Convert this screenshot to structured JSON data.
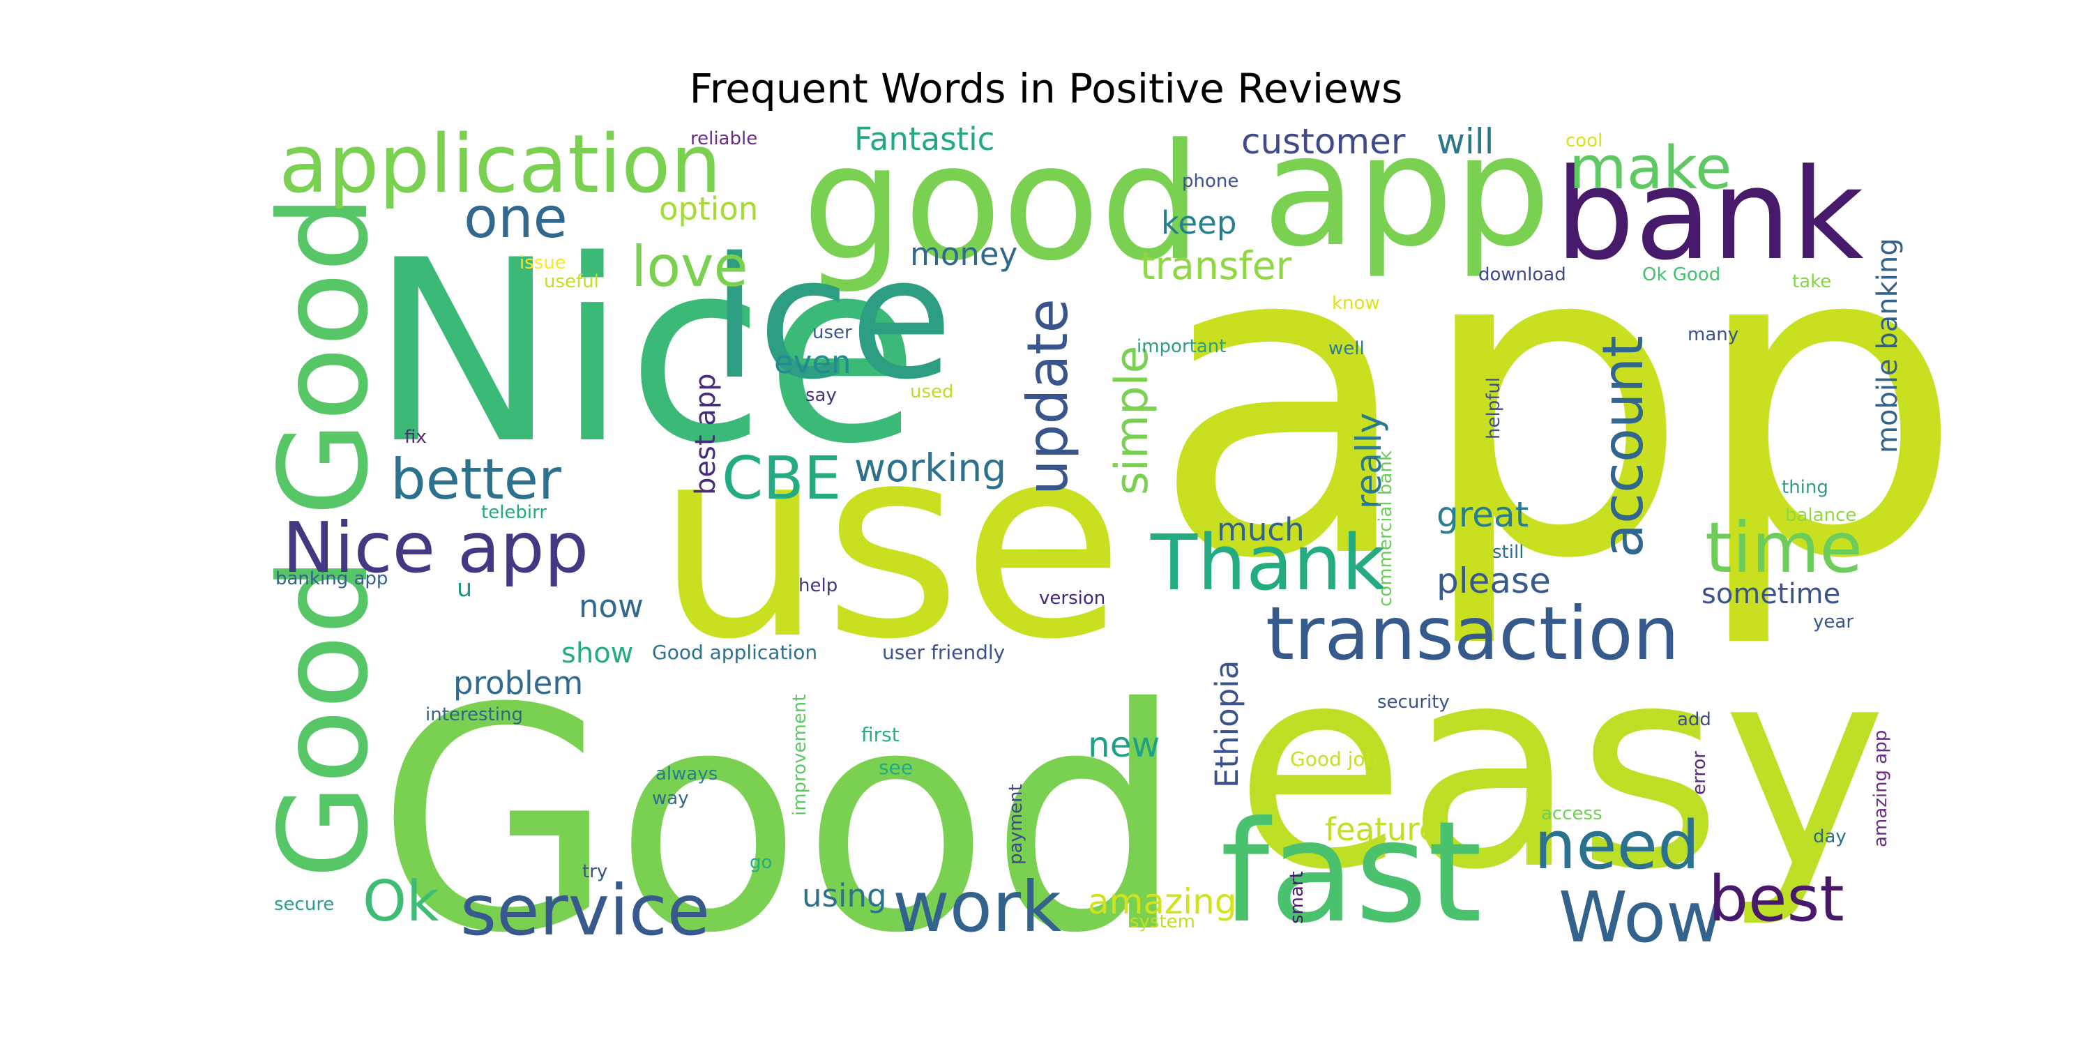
{
  "title": "Frequent Words in Positive Reviews",
  "words": [
    {
      "text": "app",
      "color": "#c8e020"
    },
    {
      "text": "Nice",
      "color": "#3ab977"
    },
    {
      "text": "Good",
      "color": "#7ad151"
    },
    {
      "text": "use",
      "color": "#c8e020"
    },
    {
      "text": "easy",
      "color": "#bddf26"
    },
    {
      "text": "good",
      "color": "#7ad151"
    },
    {
      "text": "app",
      "color": "#7ad151"
    },
    {
      "text": "bank",
      "color": "#481a6c"
    },
    {
      "text": "Good",
      "color": "#56c667"
    },
    {
      "text": "Good",
      "color": "#56c667"
    },
    {
      "text": "ice",
      "color": "#2e9e82"
    },
    {
      "text": "application",
      "color": "#7ad151"
    },
    {
      "text": "fast",
      "color": "#4ac16d"
    },
    {
      "text": "transaction",
      "color": "#375a8c"
    },
    {
      "text": "Nice app",
      "color": "#453781"
    },
    {
      "text": "Thank",
      "color": "#25ab82"
    },
    {
      "text": "time",
      "color": "#6ccd5a"
    },
    {
      "text": "account",
      "color": "#31678e"
    },
    {
      "text": "service",
      "color": "#38598c"
    },
    {
      "text": "work",
      "color": "#33628d"
    },
    {
      "text": "need",
      "color": "#2c728e"
    },
    {
      "text": "Wow",
      "color": "#33638d"
    },
    {
      "text": "best",
      "color": "#48186a"
    },
    {
      "text": "better",
      "color": "#2c728e"
    },
    {
      "text": "CBE",
      "color": "#25ab82"
    },
    {
      "text": "update",
      "color": "#39568c"
    },
    {
      "text": "make",
      "color": "#5ec962"
    },
    {
      "text": "love",
      "color": "#7ad151"
    },
    {
      "text": "one",
      "color": "#31688e"
    },
    {
      "text": "simple",
      "color": "#7ad151"
    },
    {
      "text": "Ok",
      "color": "#3fbc73"
    },
    {
      "text": "working",
      "color": "#2c728e"
    },
    {
      "text": "transfer",
      "color": "#8fd744"
    },
    {
      "text": "customer",
      "color": "#3e4a89"
    },
    {
      "text": "Fantastic",
      "color": "#22a884"
    },
    {
      "text": "will",
      "color": "#2a788e"
    },
    {
      "text": "keep",
      "color": "#277f8e"
    },
    {
      "text": "option",
      "color": "#a5db36"
    },
    {
      "text": "money",
      "color": "#31688e"
    },
    {
      "text": "even",
      "color": "#238a8d"
    },
    {
      "text": "best app",
      "color": "#472c7a"
    },
    {
      "text": "really",
      "color": "#2a788e"
    },
    {
      "text": "great",
      "color": "#287d8e"
    },
    {
      "text": "please",
      "color": "#38598c"
    },
    {
      "text": "much",
      "color": "#33638d"
    },
    {
      "text": "sometime",
      "color": "#3b528b"
    },
    {
      "text": "Ethiopia",
      "color": "#3b528b"
    },
    {
      "text": "new",
      "color": "#1fa088"
    },
    {
      "text": "feature",
      "color": "#c2df23"
    },
    {
      "text": "amazing",
      "color": "#d2e21b"
    },
    {
      "text": "using",
      "color": "#2d718e"
    },
    {
      "text": "problem",
      "color": "#306a8e"
    },
    {
      "text": "now",
      "color": "#31688e"
    },
    {
      "text": "show",
      "color": "#25ab82"
    },
    {
      "text": "mobile banking",
      "color": "#33638d"
    },
    {
      "text": "u",
      "color": "#1f958b"
    },
    {
      "text": "reliable",
      "color": "#6a2c83"
    },
    {
      "text": "cool",
      "color": "#d8e219"
    },
    {
      "text": "phone",
      "color": "#3b528b"
    },
    {
      "text": "issue",
      "color": "#fde725"
    },
    {
      "text": "useful",
      "color": "#c0df25"
    },
    {
      "text": "download",
      "color": "#3e4a89"
    },
    {
      "text": "Ok Good",
      "color": "#46c06f"
    },
    {
      "text": "take",
      "color": "#86d549"
    },
    {
      "text": "know",
      "color": "#dde318"
    },
    {
      "text": "user",
      "color": "#38598c"
    },
    {
      "text": "important",
      "color": "#2c9d84"
    },
    {
      "text": "well",
      "color": "#2e7d8e"
    },
    {
      "text": "many",
      "color": "#3b528b"
    },
    {
      "text": "say",
      "color": "#46337e"
    },
    {
      "text": "used",
      "color": "#b8de29"
    },
    {
      "text": "fix",
      "color": "#5a2878"
    },
    {
      "text": "helpful",
      "color": "#3d4e8a"
    },
    {
      "text": "commercial bank",
      "color": "#6ccd5a"
    },
    {
      "text": "thing",
      "color": "#2c9d84"
    },
    {
      "text": "telebirr",
      "color": "#22a884"
    },
    {
      "text": "balance",
      "color": "#8fd744"
    },
    {
      "text": "still",
      "color": "#2d708e"
    },
    {
      "text": "banking app",
      "color": "#33638d"
    },
    {
      "text": "help",
      "color": "#46337e"
    },
    {
      "text": "version",
      "color": "#482677"
    },
    {
      "text": "year",
      "color": "#39568c"
    },
    {
      "text": "Good application",
      "color": "#2c728e"
    },
    {
      "text": "user friendly",
      "color": "#3b528b"
    },
    {
      "text": "interesting",
      "color": "#33638d"
    },
    {
      "text": "security",
      "color": "#3b528b"
    },
    {
      "text": "add",
      "color": "#3e4a89"
    },
    {
      "text": "amazing app",
      "color": "#6a2c83"
    },
    {
      "text": "first",
      "color": "#28ae80"
    },
    {
      "text": "see",
      "color": "#25ab82"
    },
    {
      "text": "improvement",
      "color": "#5ec962"
    },
    {
      "text": "always",
      "color": "#277f8e"
    },
    {
      "text": "way",
      "color": "#31688e"
    },
    {
      "text": "payment",
      "color": "#3e4a89"
    },
    {
      "text": "Good job",
      "color": "#c8e020"
    },
    {
      "text": "error",
      "color": "#5a2878"
    },
    {
      "text": "access",
      "color": "#6ece58"
    },
    {
      "text": "day",
      "color": "#2d708e"
    },
    {
      "text": "try",
      "color": "#3b528b"
    },
    {
      "text": "go",
      "color": "#25ab82"
    },
    {
      "text": "smart",
      "color": "#481a6c"
    },
    {
      "text": "secure",
      "color": "#2a9d8f"
    },
    {
      "text": "system",
      "color": "#c0df25"
    }
  ]
}
